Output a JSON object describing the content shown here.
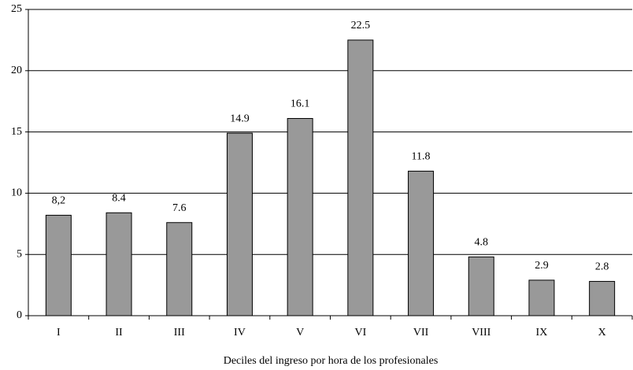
{
  "chart_data": {
    "type": "bar",
    "x_label": "Deciles del ingreso por hora de los profesionales",
    "categories": [
      "I",
      "II",
      "III",
      "IV",
      "V",
      "VI",
      "VII",
      "VIII",
      "IX",
      "X"
    ],
    "values": [
      8.2,
      8.4,
      7.6,
      14.9,
      16.1,
      22.5,
      11.8,
      4.8,
      2.9,
      2.8
    ],
    "value_labels": [
      "8,2",
      "8.4",
      "7.6",
      "14.9",
      "16.1",
      "22.5",
      "11.8",
      "4.8",
      "2.9",
      "2.8"
    ],
    "color": "#999999",
    "ylim": [
      0,
      25
    ],
    "yticks": [
      0,
      5,
      10,
      15,
      20,
      25
    ],
    "grid": true
  }
}
